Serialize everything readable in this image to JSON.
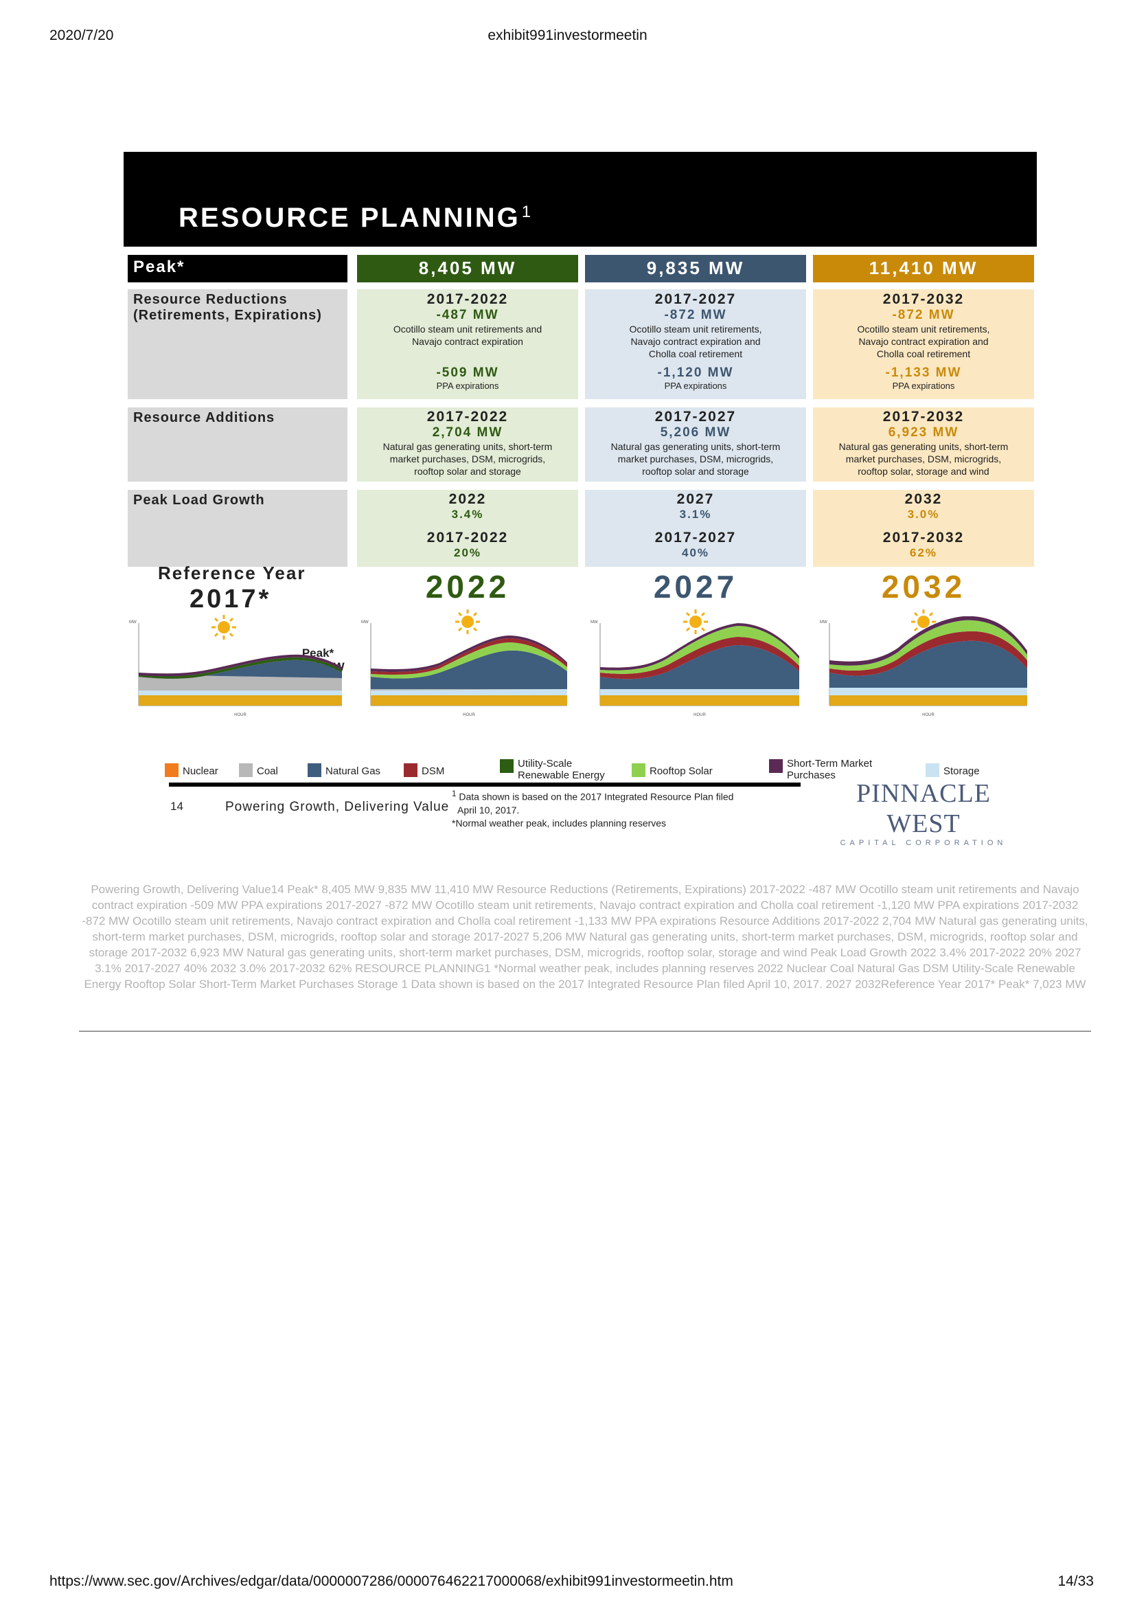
{
  "page_header": {
    "date": "2020/7/20",
    "doc_title": "exhibit991investormeetin"
  },
  "slide": {
    "title": "RESOURCE PLANNING",
    "title_superscript": "1",
    "peak_label": "Peak*",
    "columns": [
      {
        "peak_mw": "8,405 MW",
        "reductions": {
          "period": "2017-2022",
          "mw": "-487 MW",
          "desc1": "Ocotillo steam unit retirements and",
          "desc2": "Navajo contract expiration",
          "desc3": "",
          "ppa_mw": "-509 MW",
          "ppa_label": "PPA expirations"
        },
        "additions": {
          "period": "2017-2022",
          "mw": "2,704 MW",
          "desc1": "Natural gas generating units, short-term",
          "desc2": "market purchases, DSM, microgrids,",
          "desc3": "rooftop solar and storage"
        },
        "growth": {
          "year": "2022",
          "year_pct": "3.4%",
          "period": "2017-2022",
          "period_pct": "20%"
        },
        "big_year": "2022"
      },
      {
        "peak_mw": "9,835 MW",
        "reductions": {
          "period": "2017-2027",
          "mw": "-872 MW",
          "desc1": "Ocotillo steam unit retirements,",
          "desc2": "Navajo contract expiration and",
          "desc3": "Cholla coal retirement",
          "ppa_mw": "-1,120 MW",
          "ppa_label": "PPA expirations"
        },
        "additions": {
          "period": "2017-2027",
          "mw": "5,206 MW",
          "desc1": "Natural gas generating units, short-term",
          "desc2": "market purchases, DSM, microgrids,",
          "desc3": "rooftop solar and storage"
        },
        "growth": {
          "year": "2027",
          "year_pct": "3.1%",
          "period": "2017-2027",
          "period_pct": "40%"
        },
        "big_year": "2027"
      },
      {
        "peak_mw": "11,410 MW",
        "reductions": {
          "period": "2017-2032",
          "mw": "-872 MW",
          "desc1": "Ocotillo steam unit retirements,",
          "desc2": "Navajo contract expiration and",
          "desc3": "Cholla coal retirement",
          "ppa_mw": "-1,133 MW",
          "ppa_label": "PPA expirations"
        },
        "additions": {
          "period": "2017-2032",
          "mw": "6,923 MW",
          "desc1": "Natural gas generating units, short-term",
          "desc2": "market purchases, DSM, microgrids,",
          "desc3": "rooftop solar, storage and wind"
        },
        "growth": {
          "year": "2032",
          "year_pct": "3.0%",
          "period": "2017-2032",
          "period_pct": "62%"
        },
        "big_year": "2032"
      }
    ],
    "row_labels": {
      "reductions_1": "Resource Reductions",
      "reductions_2": "(Retirements, Expirations)",
      "additions": "Resource Additions",
      "growth": "Peak Load Growth"
    },
    "reference": {
      "label": "Reference Year",
      "year": "2017*",
      "peak_label": "Peak*",
      "peak_value": "7,023 MW"
    },
    "chart_axis": {
      "y_unit": "MW",
      "x_unit": "HOUR"
    },
    "legend": [
      {
        "label": "Nuclear",
        "color": "#f07c1e"
      },
      {
        "label": "Coal",
        "color": "#b8b8b8"
      },
      {
        "label": "Natural Gas",
        "color": "#3f5d7d"
      },
      {
        "label": "DSM",
        "color": "#9b2a2e"
      },
      {
        "label": "Utility-Scale",
        "label2": "Renewable Energy",
        "color": "#2c5d12"
      },
      {
        "label": "Rooftop Solar",
        "color": "#8fd14f"
      },
      {
        "label": "Short-Term Market",
        "label2": "Purchases",
        "color": "#5a2a55"
      },
      {
        "label": "Storage",
        "color": "#c9e3f2"
      }
    ],
    "footer": {
      "page_number": "14",
      "tagline": "Powering Growth, Delivering Value",
      "footnote1_mark": "1",
      "footnote1a": "Data shown is based on the 2017 Integrated Resource Plan filed",
      "footnote1b": "April 10, 2017.",
      "footnote2_mark": "*",
      "footnote2": "Normal weather peak, includes planning reserves",
      "logo_main": "PINNACLE WEST",
      "logo_sub": "CAPITAL CORPORATION"
    }
  },
  "extracted_text": "Powering Growth, Delivering Value14 Peak* 8,405 MW 9,835 MW 11,410 MW Resource Reductions  (Retirements, Expirations) 2017-2022 -487 MW  Ocotillo steam unit retirements and  Navajo contract expiration -509 MW PPA expirations 2017-2027 -872 MW  Ocotillo steam unit retirements, Navajo contract expiration and  Cholla coal retirement -1,120 MW PPA expirations 2017-2032 -872 MW  Ocotillo steam unit retirements,  Navajo contract expiration and  Cholla coal retirement -1,133 MW PPA expirations Resource Additions 2017-2022 2,704 MW Natural gas generating units, short-term  market purchases, DSM, microgrids,  rooftop solar and storage 2017-2027 5,206 MW Natural gas generating units, short-term  market purchases, DSM, microgrids,  rooftop solar and storage 2017-2032 6,923 MW Natural gas generating units, short-term  market purchases, DSM, microgrids,  rooftop solar, storage and wind Peak Load Growth 2022 3.4% 2017-2022 20% 2027 3.1% 2017-2027 40% 2032 3.0% 2017-2032 62% RESOURCE PLANNING1 *Normal weather peak, includes planning reserves 2022 Nuclear Coal Natural Gas DSM Utility-Scale Renewable Energy Rooftop Solar Short-Term Market  Purchases Storage 1 Data shown is based on the 2017 Integrated Resource Plan filed  April 10, 2017. 2027 2032Reference Year 2017* Peak*  7,023 MW",
  "page_footer": {
    "url": "https://www.sec.gov/Archives/edgar/data/0000007286/000076462217000068/exhibit991investormeetin.htm",
    "page": "14/33"
  }
}
